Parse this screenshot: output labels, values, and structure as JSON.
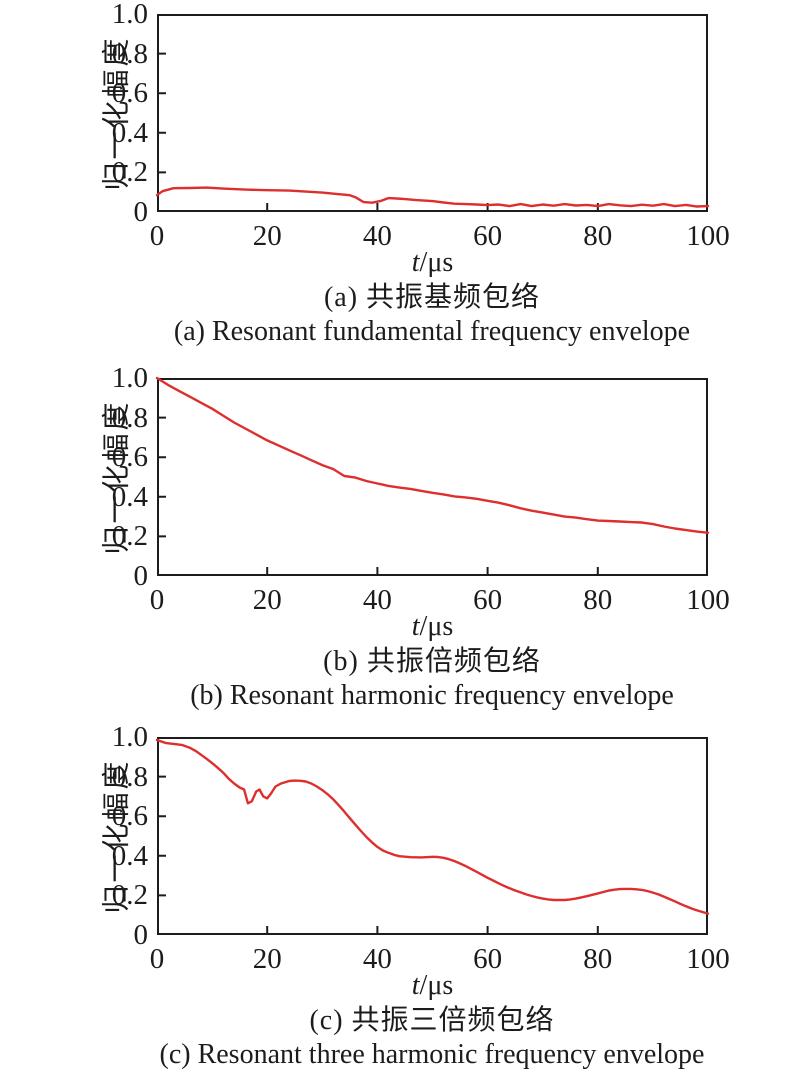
{
  "page": {
    "background": "#ffffff",
    "axis_color": "#1c1c1c",
    "curve_color": "#dd2f2e"
  },
  "chart_data": [
    {
      "type": "line",
      "id": "a",
      "title_zh": "(a) 共振基频包络",
      "title_en": "(a) Resonant fundamental frequency envelope",
      "ylabel": "归一化幅度",
      "xlabel": "t/μs",
      "xlabel_italic": "t",
      "xlabel_rest": "/μs",
      "xlim": [
        0,
        100
      ],
      "ylim": [
        0,
        1
      ],
      "xticks": [
        0,
        20,
        40,
        60,
        80,
        100
      ],
      "ytick_labels": [
        "1.0",
        "0.8",
        "0.6",
        "0.4",
        "0.2",
        "0"
      ],
      "ytick_values": [
        1,
        0.8,
        0.6,
        0.4,
        0.2,
        0
      ],
      "grid": false,
      "legend": null,
      "color": "#dd2f2e",
      "series_name": "resonant fundamental frequency envelope",
      "x": [
        0,
        1,
        3,
        6,
        9,
        12,
        16,
        20,
        24,
        27,
        30,
        33,
        35,
        36,
        37.5,
        39,
        40.5,
        42,
        43.5,
        45,
        47,
        50,
        52,
        54,
        56,
        58,
        60,
        62,
        64,
        66,
        68,
        70,
        72,
        74,
        76,
        78,
        80,
        82,
        84,
        86,
        88,
        90,
        92,
        94,
        96,
        98,
        100
      ],
      "y": [
        0.085,
        0.105,
        0.12,
        0.121,
        0.123,
        0.118,
        0.113,
        0.11,
        0.108,
        0.103,
        0.098,
        0.09,
        0.085,
        0.075,
        0.05,
        0.047,
        0.055,
        0.07,
        0.068,
        0.065,
        0.06,
        0.055,
        0.048,
        0.042,
        0.04,
        0.038,
        0.035,
        0.038,
        0.03,
        0.04,
        0.03,
        0.038,
        0.032,
        0.04,
        0.033,
        0.036,
        0.03,
        0.04,
        0.034,
        0.03,
        0.037,
        0.032,
        0.04,
        0.03,
        0.036,
        0.028,
        0.03
      ]
    },
    {
      "type": "line",
      "id": "b",
      "title_zh": "(b) 共振倍频包络",
      "title_en": "(b) Resonant harmonic frequency envelope",
      "ylabel": "归一化幅度",
      "xlabel": "t/μs",
      "xlabel_italic": "t",
      "xlabel_rest": "/μs",
      "xlim": [
        0,
        100
      ],
      "ylim": [
        0,
        1
      ],
      "xticks": [
        0,
        20,
        40,
        60,
        80,
        100
      ],
      "ytick_labels": [
        "1.0",
        "0.8",
        "0.6",
        "0.4",
        "0.2",
        "0"
      ],
      "ytick_values": [
        1,
        0.8,
        0.6,
        0.4,
        0.2,
        0
      ],
      "grid": false,
      "legend": null,
      "color": "#dd2f2e",
      "series_name": "resonant harmonic frequency envelope",
      "x": [
        0,
        2,
        4,
        6,
        8,
        10,
        12,
        14,
        16,
        18,
        20,
        22,
        24,
        26,
        28,
        30,
        32,
        34,
        36,
        38,
        40,
        42,
        44,
        46,
        48,
        50,
        52,
        54,
        56,
        58,
        60,
        62,
        64,
        66,
        68,
        70,
        72,
        74,
        76,
        78,
        80,
        82,
        84,
        86,
        88,
        90,
        92,
        94,
        96,
        98,
        100
      ],
      "y": [
        1.0,
        0.965,
        0.935,
        0.905,
        0.875,
        0.845,
        0.81,
        0.775,
        0.745,
        0.715,
        0.685,
        0.66,
        0.635,
        0.61,
        0.585,
        0.56,
        0.54,
        0.505,
        0.497,
        0.48,
        0.467,
        0.455,
        0.447,
        0.44,
        0.43,
        0.42,
        0.412,
        0.402,
        0.397,
        0.39,
        0.38,
        0.37,
        0.357,
        0.342,
        0.33,
        0.32,
        0.31,
        0.3,
        0.295,
        0.287,
        0.28,
        0.278,
        0.275,
        0.272,
        0.27,
        0.262,
        0.25,
        0.24,
        0.232,
        0.224,
        0.218
      ]
    },
    {
      "type": "line",
      "id": "c",
      "title_zh": "(c) 共振三倍频包络",
      "title_en": "(c) Resonant three harmonic frequency envelope",
      "ylabel": "归一化幅度",
      "xlabel": "t/μs",
      "xlabel_italic": "t",
      "xlabel_rest": "/μs",
      "xlim": [
        0,
        100
      ],
      "ylim": [
        0,
        1
      ],
      "xticks": [
        0,
        20,
        40,
        60,
        80,
        100
      ],
      "ytick_labels": [
        "1.0",
        "0.8",
        "0.6",
        "0.4",
        "0.2",
        "0"
      ],
      "ytick_values": [
        1,
        0.8,
        0.6,
        0.4,
        0.2,
        0
      ],
      "grid": false,
      "legend": null,
      "color": "#dd2f2e",
      "series_name": "resonant three harmonic frequency envelope",
      "x": [
        0,
        1.5,
        3,
        4.5,
        6,
        7,
        8,
        9,
        10,
        11,
        12,
        13,
        14,
        15,
        15.8,
        16.5,
        17.2,
        18,
        18.6,
        19.3,
        20,
        20.7,
        21.5,
        22.5,
        24,
        25,
        26,
        27,
        28,
        29,
        30,
        31,
        32,
        33,
        34,
        35,
        36,
        37,
        38,
        39,
        40,
        41,
        42,
        43,
        44,
        46,
        48,
        50,
        51,
        52,
        53,
        54,
        55,
        56,
        57,
        58,
        59,
        60,
        61,
        62,
        63,
        64,
        65,
        66,
        67,
        68,
        69,
        70,
        71,
        72,
        74,
        75,
        76,
        77,
        78,
        79,
        80,
        81,
        82,
        83,
        84,
        85,
        86,
        87,
        88,
        89,
        90,
        91,
        92,
        93,
        94,
        95,
        96,
        97,
        98,
        99,
        100
      ],
      "y": [
        0.985,
        0.97,
        0.965,
        0.96,
        0.945,
        0.93,
        0.91,
        0.89,
        0.868,
        0.845,
        0.82,
        0.79,
        0.765,
        0.745,
        0.735,
        0.665,
        0.675,
        0.725,
        0.735,
        0.7,
        0.69,
        0.715,
        0.75,
        0.765,
        0.778,
        0.78,
        0.779,
        0.775,
        0.765,
        0.75,
        0.732,
        0.71,
        0.685,
        0.655,
        0.623,
        0.59,
        0.557,
        0.525,
        0.495,
        0.468,
        0.445,
        0.427,
        0.415,
        0.405,
        0.398,
        0.393,
        0.392,
        0.395,
        0.394,
        0.39,
        0.383,
        0.373,
        0.361,
        0.348,
        0.334,
        0.319,
        0.304,
        0.289,
        0.275,
        0.261,
        0.248,
        0.236,
        0.225,
        0.215,
        0.205,
        0.197,
        0.19,
        0.184,
        0.18,
        0.177,
        0.177,
        0.18,
        0.184,
        0.19,
        0.196,
        0.203,
        0.21,
        0.217,
        0.224,
        0.229,
        0.232,
        0.233,
        0.233,
        0.231,
        0.228,
        0.222,
        0.214,
        0.205,
        0.194,
        0.182,
        0.17,
        0.157,
        0.145,
        0.134,
        0.124,
        0.116,
        0.108
      ]
    }
  ]
}
